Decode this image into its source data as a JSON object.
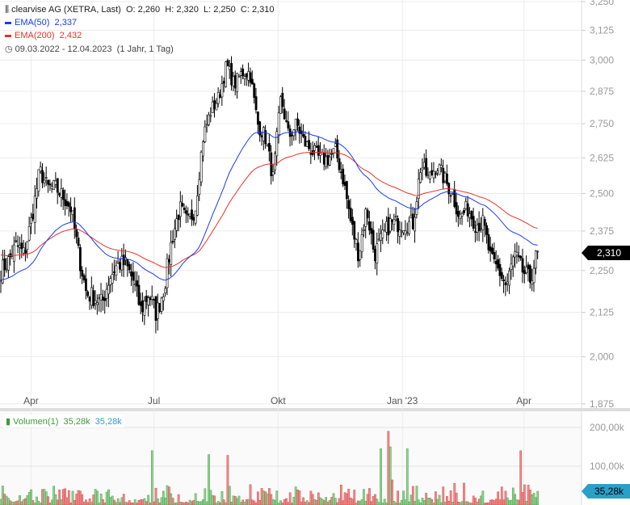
{
  "header": {
    "instrument": "clearvise AG (XETRA, Last)",
    "open": "O: 2,260",
    "high": "H: 2,320",
    "low": "L: 2,250",
    "close": "C: 2,310",
    "ema50_label": "EMA(50)",
    "ema50_value": "2,337",
    "ema200_label": "EMA(200)",
    "ema200_value": "2,432",
    "range": "09.03.2022 - 12.04.2023",
    "period": "(1 Jahr, 1 Tag)"
  },
  "volume_legend": {
    "label": "Volumen(1)",
    "value1": "35,28k",
    "value2": "35,28k"
  },
  "badges": {
    "price": "2,310",
    "volume": "35,28k"
  },
  "colors": {
    "ema50": "#1a3cf0",
    "ema200": "#e8322a",
    "candle": "#000000",
    "vol_up": "#8fd48f",
    "vol_down": "#f08c8c",
    "price_badge": "#000000",
    "volume_badge": "#2aa0c8"
  },
  "chart_data": {
    "type": "candlestick",
    "price_axis": {
      "scale": "log",
      "ticks": [
        "3,250",
        "3,125",
        "3,000",
        "2,875",
        "2,750",
        "2,625",
        "2,500",
        "2,375",
        "2,250",
        "2,125",
        "2,000",
        "1,875"
      ],
      "range": [
        1.875,
        3.25
      ]
    },
    "x_axis": {
      "ticks": [
        "Apr",
        "Jul",
        "Okt",
        "Jan '23",
        "Apr"
      ],
      "start": "2022-03-09",
      "end": "2023-04-12"
    },
    "volume_axis": {
      "ticks": [
        "200,00k",
        "100,00k"
      ],
      "range": [
        0,
        230000
      ]
    },
    "approx_closes_equally_spaced": [
      2.25,
      2.28,
      2.33,
      2.3,
      2.42,
      2.58,
      2.52,
      2.52,
      2.49,
      2.45,
      2.3,
      2.18,
      2.17,
      2.15,
      2.23,
      2.27,
      2.27,
      2.22,
      2.13,
      2.18,
      2.12,
      2.2,
      2.35,
      2.45,
      2.4,
      2.45,
      2.7,
      2.8,
      2.85,
      2.98,
      2.9,
      2.95,
      2.95,
      2.75,
      2.7,
      2.55,
      2.85,
      2.7,
      2.75,
      2.68,
      2.65,
      2.62,
      2.62,
      2.65,
      2.55,
      2.4,
      2.3,
      2.45,
      2.3,
      2.35,
      2.4,
      2.4,
      2.4,
      2.4,
      2.6,
      2.55,
      2.6,
      2.55,
      2.5,
      2.42,
      2.45,
      2.4,
      2.4,
      2.28,
      2.25,
      2.2,
      2.3,
      2.25,
      2.22,
      2.31
    ],
    "volume_spikes": [
      {
        "date": "2022-06-29",
        "value": 140000
      },
      {
        "date": "2022-08-10",
        "value": 130000
      },
      {
        "date": "2022-08-24",
        "value": 128000
      },
      {
        "date": "2022-12-15",
        "value": 145000
      },
      {
        "date": "2022-12-21",
        "value": 190000
      },
      {
        "date": "2022-12-23",
        "value": 150000
      },
      {
        "date": "2023-01-04",
        "value": 145000
      },
      {
        "date": "2023-03-29",
        "value": 140000
      }
    ],
    "last_volume": 35280
  }
}
